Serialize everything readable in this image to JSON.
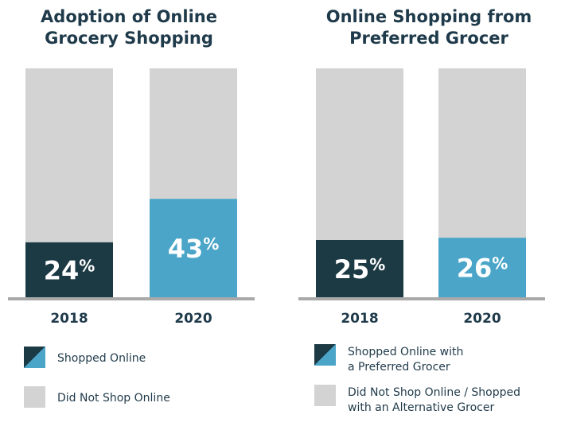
{
  "chart_data": [
    {
      "type": "bar",
      "title": "Adoption of Online\nGrocery Shopping",
      "categories": [
        "2018",
        "2020"
      ],
      "series": [
        {
          "name": "Shopped Online",
          "values": [
            24,
            43
          ],
          "colors": [
            "#1c3a44",
            "#4aa5c8"
          ]
        },
        {
          "name": "Did Not Shop Online",
          "values": [
            76,
            57
          ],
          "color": "#d3d3d3"
        }
      ],
      "value_labels": [
        "24%",
        "43%"
      ],
      "ylim": [
        0,
        100
      ],
      "stacked": true,
      "legend": [
        {
          "label": "Shopped Online",
          "swatch": "split"
        },
        {
          "label": "Did Not Shop Online",
          "swatch": "grey"
        }
      ],
      "legend_position": "bottom"
    },
    {
      "type": "bar",
      "title": "Online Shopping from\nPreferred Grocer",
      "categories": [
        "2018",
        "2020"
      ],
      "series": [
        {
          "name": "Shopped Online with a Preferred Grocer",
          "values": [
            25,
            26
          ],
          "colors": [
            "#1c3a44",
            "#4aa5c8"
          ]
        },
        {
          "name": "Did Not Shop Online / Shopped with an Alternative Grocer",
          "values": [
            75,
            74
          ],
          "color": "#d3d3d3"
        }
      ],
      "value_labels": [
        "25%",
        "26%"
      ],
      "ylim": [
        0,
        100
      ],
      "stacked": true,
      "legend": [
        {
          "label": "Shopped Online with\na Preferred Grocer",
          "swatch": "split"
        },
        {
          "label": "Did Not Shop Online / Shopped\nwith an Alternative Grocer",
          "swatch": "grey"
        }
      ],
      "legend_position": "bottom"
    }
  ],
  "colors": {
    "dark": "#1c3a44",
    "light_blue": "#4aa5c8",
    "grey": "#d3d3d3",
    "axis": "#a9a9a9"
  }
}
